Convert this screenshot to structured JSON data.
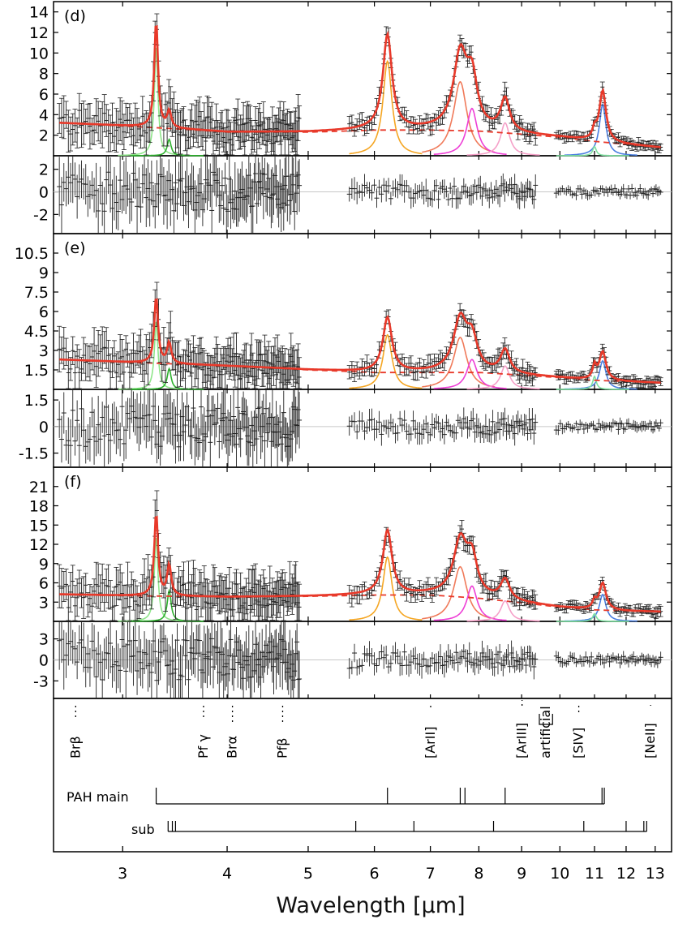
{
  "chart_data": {
    "type": "line",
    "xlabel": "Wavelength [μm]",
    "x_scale": "log",
    "xlim": [
      2.48,
      13.6
    ],
    "x_ticks": [
      3,
      4,
      5,
      6,
      7,
      8,
      9,
      10,
      11,
      12,
      13
    ],
    "x_tick_labels": [
      "3",
      "4",
      "5",
      "6",
      "7",
      "8",
      "9",
      "10",
      "11",
      "12",
      "13"
    ],
    "colors": {
      "model": "#e8392a",
      "continuum": "#e8392a",
      "pah_3_3": "#8fe58a",
      "pah_3_4": "#2fb12f",
      "pah_6_2": "#f5a623",
      "pah_7_7": "#f07a5a",
      "pah_7_8": "#ee3fd6",
      "pah_8_6": "#f5a0c8",
      "pah_11_2": "#4a7fe0",
      "pah_11_2_sub": "#7fe0a0",
      "data": "#222222"
    },
    "panels": [
      {
        "label": "(d)",
        "ylim": [
          0,
          15
        ],
        "y_ticks": [
          "2",
          "4",
          "6",
          "8",
          "10",
          "12",
          "14"
        ],
        "residual_ylim": [
          -3.7,
          3.2
        ],
        "residual_ticks": [
          "-2",
          "0",
          "2"
        ],
        "continuum": {
          "x": [
            2.5,
            3.0,
            4.0,
            5.0,
            6.0,
            7.0,
            8.0,
            9.0,
            10.0,
            11.0,
            12.0,
            13.2
          ],
          "y": [
            3.2,
            2.9,
            2.3,
            2.3,
            2.5,
            2.5,
            2.4,
            2.1,
            1.8,
            1.4,
            1.1,
            0.8
          ]
        },
        "features": [
          {
            "name": "3.3",
            "center": 3.29,
            "amp": 10.5
          },
          {
            "name": "3.4",
            "center": 3.41,
            "amp": 1.6
          },
          {
            "name": "6.2",
            "center": 6.22,
            "amp": 9.2
          },
          {
            "name": "7.7",
            "center": 7.6,
            "amp": 7.2
          },
          {
            "name": "7.8",
            "center": 7.85,
            "amp": 4.6
          },
          {
            "name": "8.6",
            "center": 8.6,
            "amp": 3.2
          },
          {
            "name": "11.2",
            "center": 11.25,
            "amp": 5.0
          },
          {
            "name": "11.0",
            "center": 11.0,
            "amp": 0.9
          }
        ]
      },
      {
        "label": "(e)",
        "ylim": [
          0,
          12
        ],
        "y_ticks": [
          "1.5",
          "3",
          "4.5",
          "6",
          "7.5",
          "9",
          "10.5"
        ],
        "residual_ylim": [
          -2.3,
          2.1
        ],
        "residual_ticks": [
          "-1.5",
          "0",
          "1.5"
        ],
        "continuum": {
          "x": [
            2.5,
            3.0,
            4.0,
            5.0,
            6.0,
            7.0,
            8.0,
            9.0,
            10.0,
            11.0,
            12.0,
            13.2
          ],
          "y": [
            2.3,
            2.1,
            1.8,
            1.5,
            1.3,
            1.3,
            1.3,
            1.1,
            0.9,
            0.7,
            0.6,
            0.5
          ]
        },
        "features": [
          {
            "name": "3.3",
            "center": 3.29,
            "amp": 5.2
          },
          {
            "name": "3.4",
            "center": 3.41,
            "amp": 1.6
          },
          {
            "name": "6.2",
            "center": 6.22,
            "amp": 4.2
          },
          {
            "name": "7.7",
            "center": 7.6,
            "amp": 4.0
          },
          {
            "name": "7.8",
            "center": 7.85,
            "amp": 2.3
          },
          {
            "name": "8.6",
            "center": 8.6,
            "amp": 1.8
          },
          {
            "name": "11.2",
            "center": 11.25,
            "amp": 2.2
          },
          {
            "name": "11.0",
            "center": 11.0,
            "amp": 1.0
          }
        ]
      },
      {
        "label": "(f)",
        "ylim": [
          0,
          24
        ],
        "y_ticks": [
          "3",
          "6",
          "9",
          "12",
          "15",
          "18",
          "21"
        ],
        "residual_ylim": [
          -5.5,
          5.5
        ],
        "residual_ticks": [
          "-3",
          "0",
          "3"
        ],
        "continuum": {
          "x": [
            2.5,
            3.0,
            4.0,
            5.0,
            6.0,
            7.0,
            8.0,
            9.0,
            10.0,
            11.0,
            12.0,
            13.2
          ],
          "y": [
            4.2,
            4.0,
            3.8,
            3.9,
            4.1,
            4.1,
            3.6,
            2.9,
            2.2,
            1.8,
            1.6,
            1.5
          ]
        },
        "features": [
          {
            "name": "3.3",
            "center": 3.29,
            "amp": 13.0
          },
          {
            "name": "3.4",
            "center": 3.41,
            "amp": 4.8
          },
          {
            "name": "6.2",
            "center": 6.22,
            "amp": 10.0
          },
          {
            "name": "7.7",
            "center": 7.6,
            "amp": 8.5
          },
          {
            "name": "7.8",
            "center": 7.85,
            "amp": 5.5
          },
          {
            "name": "8.6",
            "center": 8.6,
            "amp": 3.2
          },
          {
            "name": "11.2",
            "center": 11.25,
            "amp": 4.2
          },
          {
            "name": "11.0",
            "center": 11.0,
            "amp": 1.2
          }
        ]
      }
    ],
    "line_markers": [
      {
        "label": "Brβ",
        "x": 2.63
      },
      {
        "label": "Pf γ",
        "x": 3.74
      },
      {
        "label": "Brα",
        "x": 4.05
      },
      {
        "label": "Pfβ",
        "x": 4.65
      },
      {
        "label": "[ArII]",
        "x": 6.99
      },
      {
        "label": "[ArIII]",
        "x": 8.99
      },
      {
        "label": "artificial",
        "x": 9.6
      },
      {
        "label": "[SIV]",
        "x": 10.51
      },
      {
        "label": "[NeII]",
        "x": 12.81
      }
    ],
    "artificial_range": [
      9.45,
      9.8
    ],
    "pah_main": {
      "label": "PAH  main",
      "x": [
        3.29,
        6.22,
        7.6,
        7.7,
        8.6,
        11.23,
        11.3
      ]
    },
    "pah_sub": {
      "label": "sub",
      "x": [
        3.4,
        3.44,
        3.47,
        5.7,
        6.69,
        8.33,
        10.68,
        12.0,
        12.6,
        12.7
      ]
    }
  }
}
